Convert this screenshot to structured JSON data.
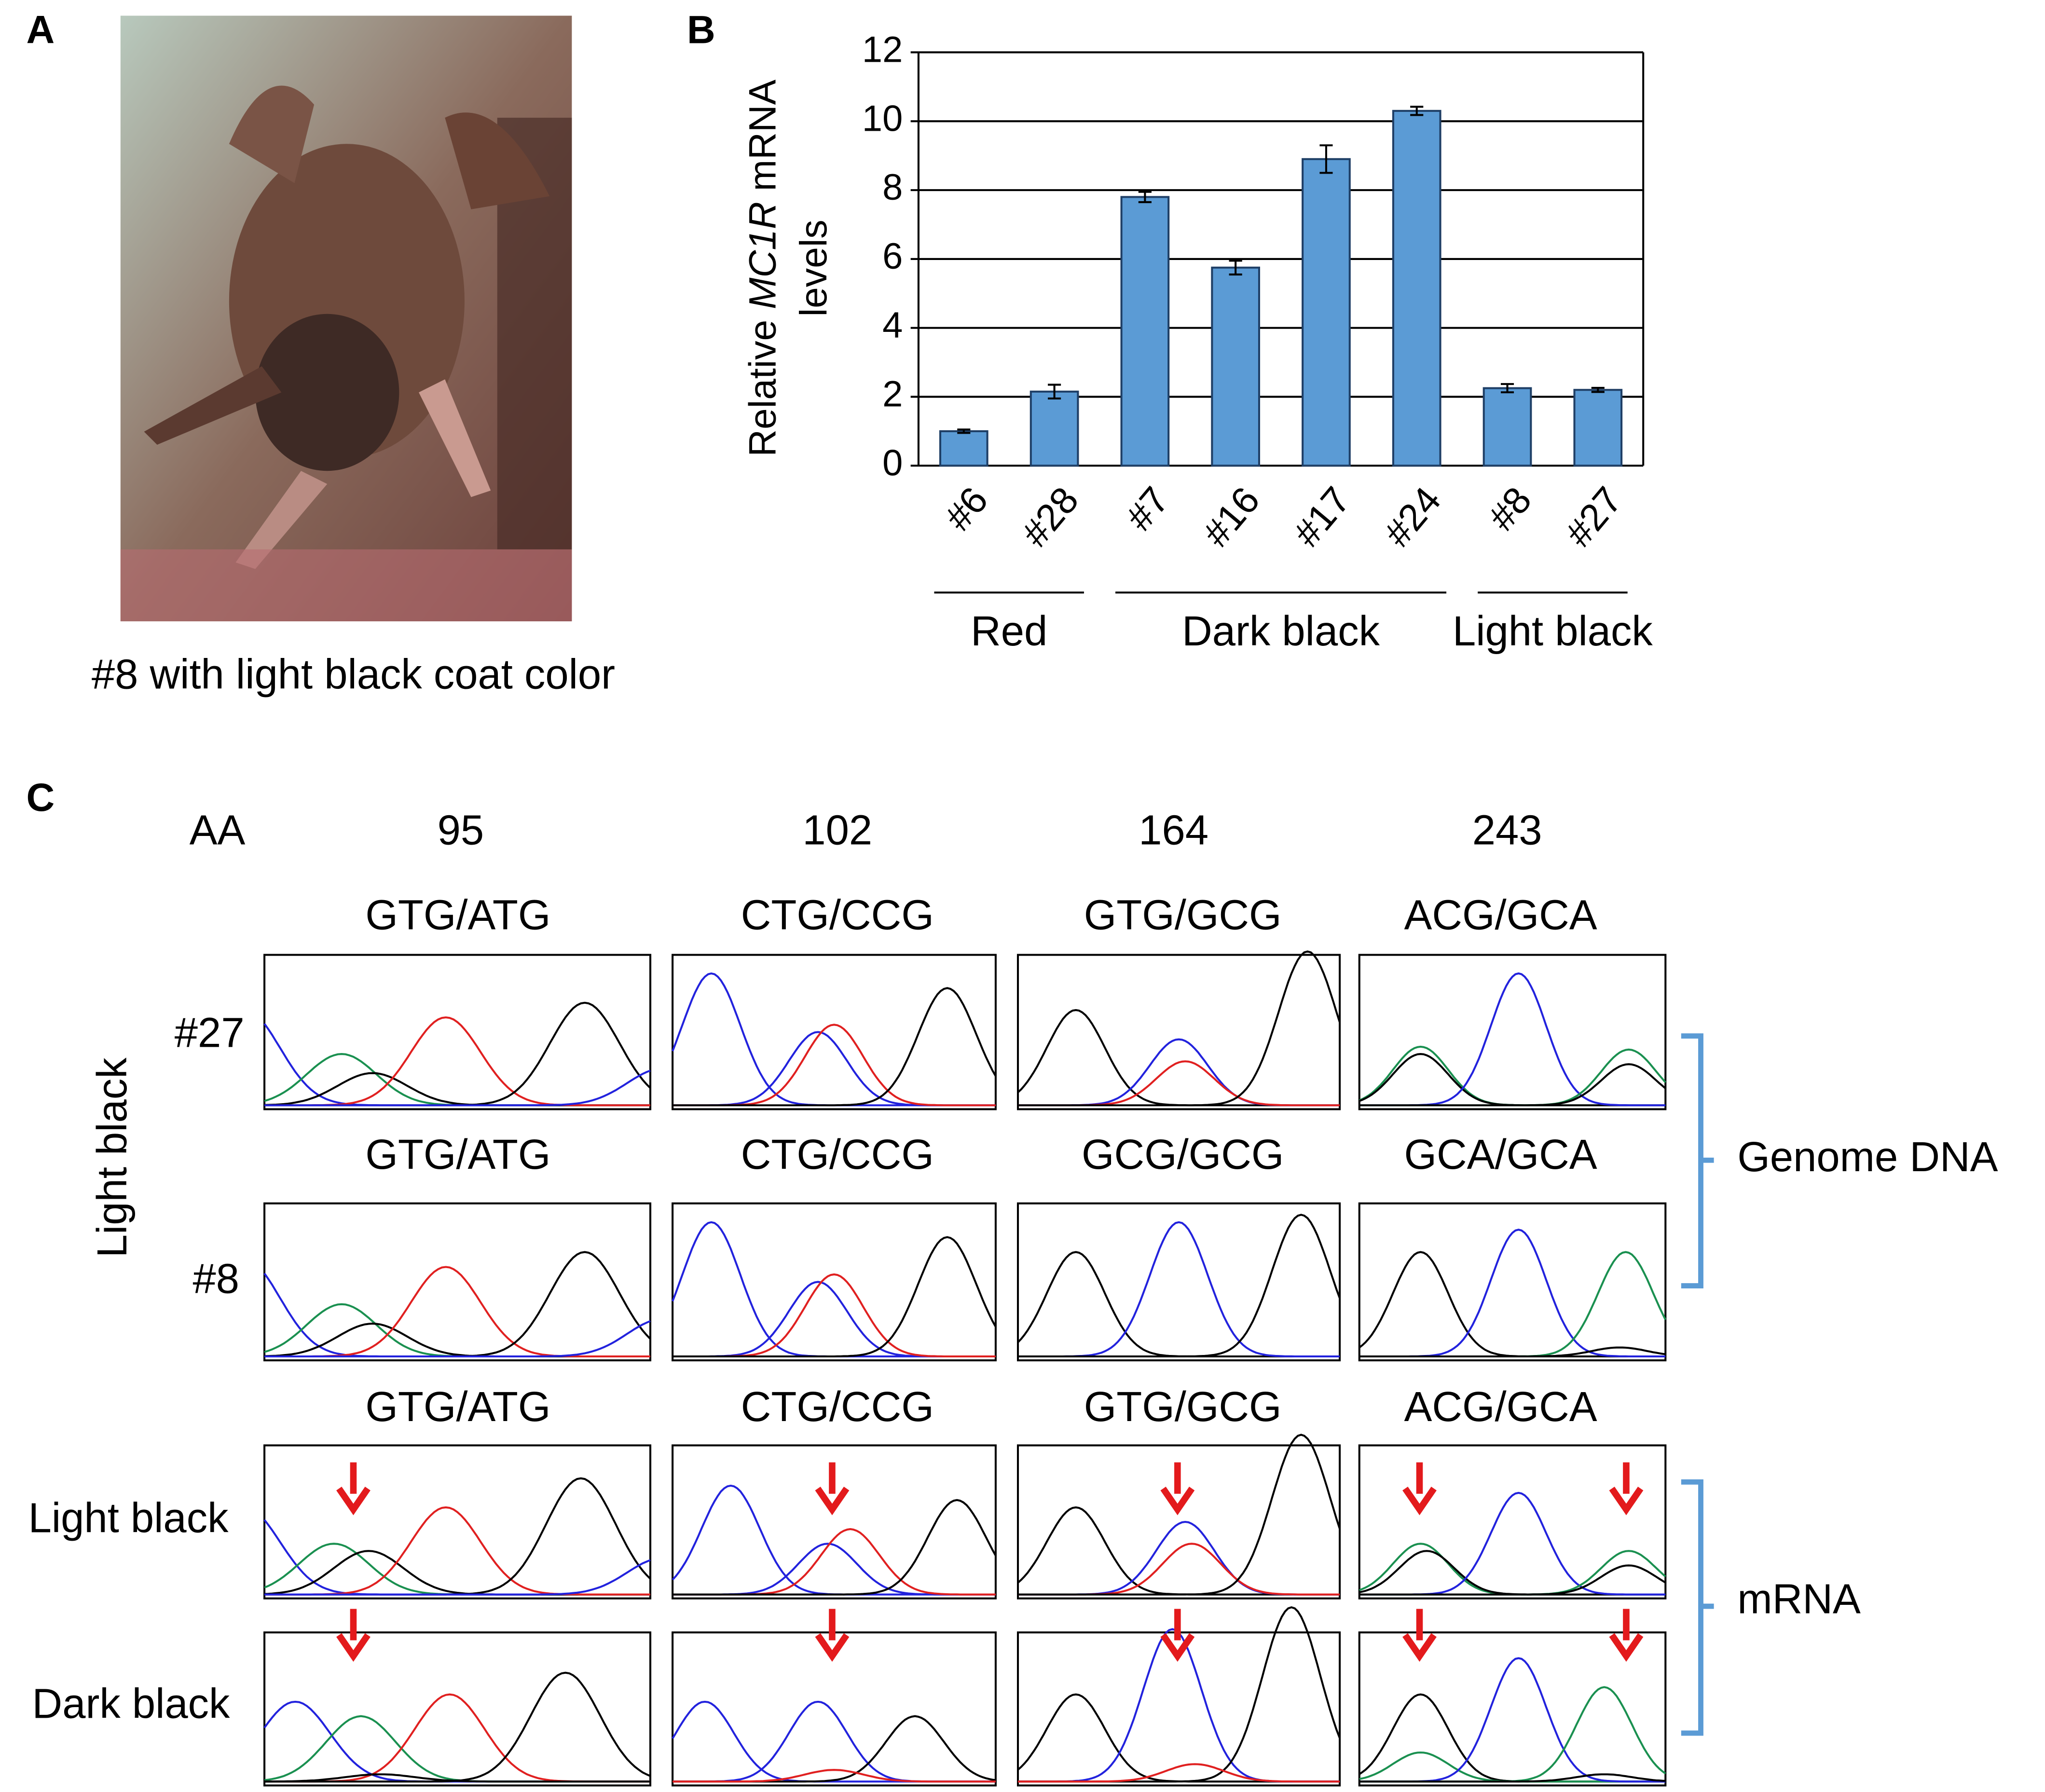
{
  "panel_a": {
    "label": "A",
    "caption": "#8 with light black coat color"
  },
  "chart_data": {
    "type": "bar",
    "panel_label": "B",
    "y_label": {
      "prefix": "Relative ",
      "gene": "MC1R",
      "suffix": " mRNA",
      "line2": "levels"
    },
    "categories": [
      "#6",
      "#28",
      "#7",
      "#16",
      "#17",
      "#24",
      "#8",
      "#27"
    ],
    "category_groups": [
      "Red",
      "Red",
      "Dark black",
      "Dark black",
      "Dark black",
      "Dark black",
      "Light black",
      "Light black"
    ],
    "values": [
      1.0,
      2.15,
      7.8,
      5.75,
      8.9,
      10.3,
      2.25,
      2.2
    ],
    "errors": [
      0.05,
      0.2,
      0.15,
      0.2,
      0.4,
      0.12,
      0.12,
      0.06
    ],
    "color": "#5b9bd5",
    "ylim": [
      0,
      12
    ],
    "yticks": [
      0,
      2,
      4,
      6,
      8,
      10,
      12
    ],
    "grid": true
  },
  "panel_c": {
    "label": "C",
    "aa_label": "AA",
    "positions": [
      95,
      102,
      164,
      243
    ],
    "side_label": "Light black",
    "rows": [
      {
        "label": "#27",
        "codons": [
          "GTG/ATG",
          "CTG/CCG",
          "GTG/GCG",
          "ACG/GCA"
        ]
      },
      {
        "label": "#8",
        "codons": [
          "GTG/ATG",
          "CTG/CCG",
          "GCG/GCG",
          "GCA/GCA"
        ]
      },
      {
        "label": "Light black",
        "codons": [
          "GTG/ATG",
          "CTG/CCG",
          "GTG/GCG",
          "ACG/GCA"
        ]
      },
      {
        "label": "Dark black"
      }
    ],
    "brackets": [
      "Genome DNA",
      "mRNA"
    ]
  }
}
